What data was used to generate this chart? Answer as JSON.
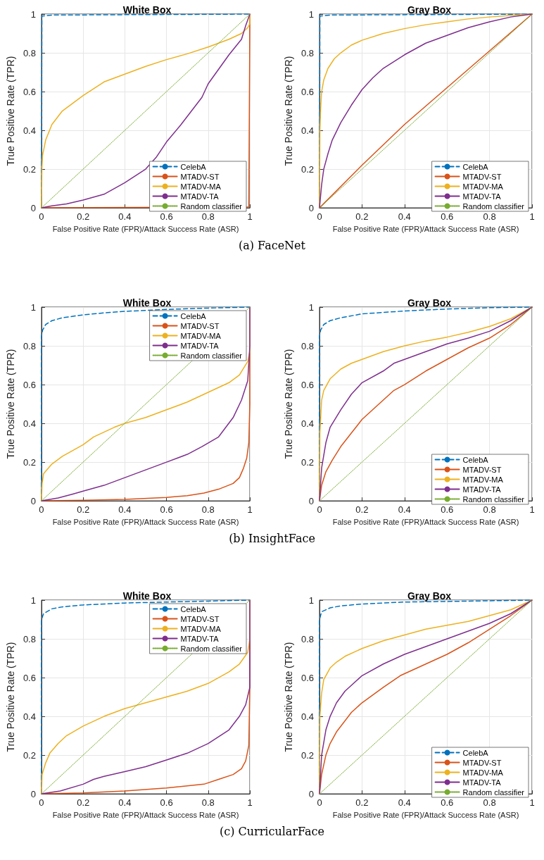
{
  "chart_data": [
    {
      "type": "line",
      "title": "White Box",
      "xlabel": "False Positive Rate (FPR)/Attack Success Rate (ASR)",
      "ylabel": "True Positive Rate (TPR)",
      "xlim": [
        0,
        1
      ],
      "ylim": [
        0,
        1
      ],
      "xticks": [
        0,
        0.2,
        0.4,
        0.6,
        0.8,
        1
      ],
      "yticks": [
        0,
        0.2,
        0.4,
        0.6,
        0.8,
        1
      ],
      "grid": true,
      "legend": "bottom right",
      "marker": "none",
      "series": [
        {
          "name": "CelebA",
          "color": "#0072bd",
          "line_style": "dashed",
          "x": [
            0,
            0.002,
            0.05,
            1
          ],
          "values": [
            0,
            0.99,
            0.995,
            1
          ]
        },
        {
          "name": "MTADV-ST",
          "color": "#d95319",
          "line_style": "solid",
          "x": [
            0,
            0.995,
            1,
            1
          ],
          "values": [
            0,
            0.005,
            0.94,
            1
          ]
        },
        {
          "name": "MTADV-MA",
          "color": "#edb120",
          "line_style": "solid",
          "x": [
            0,
            0.002,
            0.005,
            0.02,
            0.05,
            0.1,
            0.2,
            0.3,
            0.4,
            0.5,
            0.6,
            0.7,
            0.8,
            0.85,
            0.9,
            0.96,
            0.99,
            1,
            1
          ],
          "values": [
            0,
            0.2,
            0.27,
            0.35,
            0.43,
            0.5,
            0.58,
            0.65,
            0.69,
            0.73,
            0.765,
            0.795,
            0.83,
            0.85,
            0.87,
            0.9,
            0.93,
            0.95,
            1
          ]
        },
        {
          "name": "MTADV-TA",
          "color": "#7e2f8e",
          "line_style": "solid",
          "x": [
            0,
            0.05,
            0.12,
            0.2,
            0.3,
            0.4,
            0.5,
            0.55,
            0.6,
            0.67,
            0.72,
            0.77,
            0.8,
            0.9,
            0.96,
            0.98,
            1
          ],
          "values": [
            0,
            0.01,
            0.02,
            0.04,
            0.07,
            0.13,
            0.2,
            0.26,
            0.34,
            0.43,
            0.5,
            0.57,
            0.64,
            0.79,
            0.87,
            0.94,
            1
          ]
        },
        {
          "name": "Random classifier",
          "color": "#77ac30",
          "line_style": "dotted",
          "x": [
            0,
            1
          ],
          "values": [
            0,
            1
          ]
        }
      ]
    },
    {
      "type": "line",
      "title": "Gray Box",
      "xlabel": "False Positive Rate (FPR)/Attack Success Rate (ASR)",
      "ylabel": "True Positive Rate (TPR)",
      "xlim": [
        0,
        1
      ],
      "ylim": [
        0,
        1
      ],
      "xticks": [
        0,
        0.2,
        0.4,
        0.6,
        0.8,
        1
      ],
      "yticks": [
        0,
        0.2,
        0.4,
        0.6,
        0.8,
        1
      ],
      "grid": true,
      "legend": "bottom right",
      "marker": "none",
      "annotations": [
        "(a) FaceNet"
      ],
      "series": [
        {
          "name": "CelebA",
          "color": "#0072bd",
          "line_style": "dashed",
          "x": [
            0,
            0.002,
            0.05,
            1
          ],
          "values": [
            0,
            0.99,
            0.995,
            1
          ]
        },
        {
          "name": "MTADV-ST",
          "color": "#d95319",
          "line_style": "solid",
          "x": [
            0,
            0.2,
            0.4,
            0.6,
            0.8,
            1
          ],
          "values": [
            0,
            0.22,
            0.43,
            0.62,
            0.81,
            1
          ]
        },
        {
          "name": "MTADV-MA",
          "color": "#edb120",
          "line_style": "solid",
          "x": [
            0,
            0.002,
            0.005,
            0.01,
            0.02,
            0.04,
            0.07,
            0.1,
            0.15,
            0.2,
            0.3,
            0.4,
            0.5,
            0.6,
            0.7,
            0.8,
            0.9,
            1
          ],
          "values": [
            0,
            0.4,
            0.5,
            0.6,
            0.66,
            0.72,
            0.77,
            0.8,
            0.84,
            0.865,
            0.9,
            0.925,
            0.945,
            0.96,
            0.975,
            0.985,
            0.993,
            1
          ]
        },
        {
          "name": "MTADV-TA",
          "color": "#7e2f8e",
          "line_style": "solid",
          "x": [
            0,
            0.01,
            0.02,
            0.04,
            0.06,
            0.1,
            0.15,
            0.2,
            0.25,
            0.3,
            0.4,
            0.5,
            0.6,
            0.7,
            0.8,
            0.9,
            1
          ],
          "values": [
            0,
            0.12,
            0.2,
            0.28,
            0.35,
            0.44,
            0.53,
            0.61,
            0.67,
            0.72,
            0.79,
            0.85,
            0.89,
            0.93,
            0.96,
            0.985,
            1
          ]
        },
        {
          "name": "Random classifier",
          "color": "#77ac30",
          "line_style": "dotted",
          "x": [
            0,
            1
          ],
          "values": [
            0,
            1
          ]
        }
      ]
    },
    {
      "type": "line",
      "title": "White Box",
      "xlabel": "False Positive Rate (FPR)/Attack Success Rate (ASR)",
      "ylabel": "True Positive Rate (TPR)",
      "xlim": [
        0,
        1
      ],
      "ylim": [
        0,
        1
      ],
      "xticks": [
        0,
        0.2,
        0.4,
        0.6,
        0.8,
        1
      ],
      "yticks": [
        0,
        0.2,
        0.4,
        0.6,
        0.8,
        1
      ],
      "grid": true,
      "legend": "top right",
      "marker": "none",
      "series": [
        {
          "name": "CelebA",
          "color": "#0072bd",
          "line_style": "dashed",
          "x": [
            0,
            0,
            0.005,
            0.02,
            0.05,
            0.1,
            0.2,
            0.3,
            0.4,
            0.6,
            0.8,
            1
          ],
          "values": [
            0,
            0.85,
            0.88,
            0.91,
            0.93,
            0.945,
            0.96,
            0.97,
            0.978,
            0.988,
            0.995,
            1
          ]
        },
        {
          "name": "MTADV-ST",
          "color": "#d95319",
          "line_style": "solid",
          "x": [
            0,
            0.2,
            0.4,
            0.6,
            0.7,
            0.78,
            0.85,
            0.92,
            0.95,
            0.97,
            0.985,
            0.995,
            1,
            1
          ],
          "values": [
            0,
            0.003,
            0.008,
            0.018,
            0.027,
            0.04,
            0.06,
            0.09,
            0.12,
            0.17,
            0.22,
            0.3,
            0.5,
            1
          ]
        },
        {
          "name": "MTADV-MA",
          "color": "#edb120",
          "line_style": "solid",
          "x": [
            0,
            0.003,
            0.01,
            0.05,
            0.1,
            0.2,
            0.25,
            0.35,
            0.4,
            0.5,
            0.6,
            0.7,
            0.8,
            0.9,
            0.95,
            0.99,
            1,
            1
          ],
          "values": [
            0,
            0.09,
            0.14,
            0.19,
            0.23,
            0.29,
            0.33,
            0.38,
            0.4,
            0.43,
            0.47,
            0.51,
            0.56,
            0.61,
            0.65,
            0.72,
            0.77,
            1
          ]
        },
        {
          "name": "MTADV-TA",
          "color": "#7e2f8e",
          "line_style": "solid",
          "x": [
            0,
            0.08,
            0.15,
            0.2,
            0.3,
            0.4,
            0.5,
            0.6,
            0.7,
            0.77,
            0.85,
            0.92,
            0.96,
            0.99,
            1,
            1
          ],
          "values": [
            0,
            0.015,
            0.035,
            0.05,
            0.08,
            0.12,
            0.16,
            0.2,
            0.24,
            0.28,
            0.33,
            0.43,
            0.52,
            0.62,
            0.8,
            1
          ]
        },
        {
          "name": "Random classifier",
          "color": "#77ac30",
          "line_style": "dotted",
          "x": [
            0,
            1
          ],
          "values": [
            0,
            1
          ]
        }
      ]
    },
    {
      "type": "line",
      "title": "Gray Box",
      "xlabel": "False Positive Rate (FPR)/Attack Success Rate (ASR)",
      "ylabel": "True Positive Rate (TPR)",
      "xlim": [
        0,
        1
      ],
      "ylim": [
        0,
        1
      ],
      "xticks": [
        0,
        0.2,
        0.4,
        0.6,
        0.8,
        1
      ],
      "yticks": [
        0,
        0.2,
        0.4,
        0.6,
        0.8,
        1
      ],
      "grid": true,
      "legend": "bottom right",
      "marker": "none",
      "annotations": [
        "(b) InsightFace"
      ],
      "series": [
        {
          "name": "CelebA",
          "color": "#0072bd",
          "line_style": "dashed",
          "x": [
            0,
            0,
            0.005,
            0.02,
            0.05,
            0.1,
            0.2,
            0.4,
            0.6,
            0.8,
            1
          ],
          "values": [
            0,
            0.85,
            0.88,
            0.91,
            0.93,
            0.945,
            0.965,
            0.98,
            0.99,
            0.997,
            1
          ]
        },
        {
          "name": "MTADV-ST",
          "color": "#d95319",
          "line_style": "solid",
          "x": [
            0,
            0.01,
            0.03,
            0.06,
            0.1,
            0.15,
            0.2,
            0.3,
            0.35,
            0.4,
            0.5,
            0.6,
            0.7,
            0.8,
            0.9,
            1
          ],
          "values": [
            0,
            0.08,
            0.15,
            0.21,
            0.28,
            0.35,
            0.42,
            0.52,
            0.57,
            0.6,
            0.67,
            0.73,
            0.79,
            0.84,
            0.91,
            1
          ]
        },
        {
          "name": "MTADV-MA",
          "color": "#edb120",
          "line_style": "solid",
          "x": [
            0,
            0.002,
            0.01,
            0.02,
            0.05,
            0.1,
            0.15,
            0.2,
            0.3,
            0.4,
            0.5,
            0.6,
            0.7,
            0.8,
            0.9,
            1
          ],
          "values": [
            0,
            0.35,
            0.52,
            0.57,
            0.63,
            0.68,
            0.71,
            0.73,
            0.77,
            0.8,
            0.825,
            0.845,
            0.87,
            0.9,
            0.94,
            1
          ]
        },
        {
          "name": "MTADV-TA",
          "color": "#7e2f8e",
          "line_style": "solid",
          "x": [
            0,
            0.01,
            0.03,
            0.05,
            0.1,
            0.15,
            0.2,
            0.3,
            0.35,
            0.4,
            0.5,
            0.6,
            0.7,
            0.8,
            0.9,
            1
          ],
          "values": [
            0,
            0.17,
            0.3,
            0.38,
            0.47,
            0.55,
            0.61,
            0.67,
            0.71,
            0.73,
            0.77,
            0.81,
            0.84,
            0.875,
            0.93,
            1
          ]
        },
        {
          "name": "Random classifier",
          "color": "#77ac30",
          "line_style": "dotted",
          "x": [
            0,
            1
          ],
          "values": [
            0,
            1
          ]
        }
      ]
    },
    {
      "type": "line",
      "title": "White Box",
      "xlabel": "False Positive Rate (FPR)/Attack Success Rate (ASR)",
      "ylabel": "True Positive Rate (TPR)",
      "xlim": [
        0,
        1
      ],
      "ylim": [
        0,
        1
      ],
      "xticks": [
        0,
        0.2,
        0.4,
        0.6,
        0.8,
        1
      ],
      "yticks": [
        0,
        0.2,
        0.4,
        0.6,
        0.8,
        1
      ],
      "grid": true,
      "legend": "top right",
      "marker": "none",
      "series": [
        {
          "name": "CelebA",
          "color": "#0072bd",
          "line_style": "dashed",
          "x": [
            0,
            0,
            0.01,
            0.05,
            0.1,
            0.2,
            0.4,
            0.6,
            0.8,
            1
          ],
          "values": [
            0,
            0.9,
            0.93,
            0.955,
            0.965,
            0.975,
            0.985,
            0.99,
            0.995,
            1
          ]
        },
        {
          "name": "MTADV-ST",
          "color": "#d95319",
          "line_style": "solid",
          "x": [
            0,
            0.2,
            0.4,
            0.6,
            0.78,
            0.85,
            0.92,
            0.96,
            0.98,
            0.995,
            1,
            1
          ],
          "values": [
            0,
            0.005,
            0.015,
            0.03,
            0.05,
            0.075,
            0.1,
            0.13,
            0.17,
            0.25,
            0.55,
            1
          ]
        },
        {
          "name": "MTADV-MA",
          "color": "#edb120",
          "line_style": "solid",
          "x": [
            0,
            0.003,
            0.02,
            0.04,
            0.08,
            0.12,
            0.2,
            0.3,
            0.4,
            0.5,
            0.6,
            0.7,
            0.8,
            0.9,
            0.95,
            0.99,
            1,
            1
          ],
          "values": [
            0,
            0.1,
            0.16,
            0.21,
            0.26,
            0.3,
            0.35,
            0.4,
            0.44,
            0.47,
            0.5,
            0.53,
            0.57,
            0.63,
            0.67,
            0.73,
            0.8,
            1
          ]
        },
        {
          "name": "MTADV-TA",
          "color": "#7e2f8e",
          "line_style": "solid",
          "x": [
            0,
            0.09,
            0.2,
            0.25,
            0.3,
            0.4,
            0.5,
            0.6,
            0.7,
            0.8,
            0.9,
            0.95,
            0.98,
            1,
            1
          ],
          "values": [
            0,
            0.015,
            0.05,
            0.075,
            0.09,
            0.115,
            0.14,
            0.175,
            0.21,
            0.26,
            0.33,
            0.4,
            0.46,
            0.55,
            1
          ]
        },
        {
          "name": "Random classifier",
          "color": "#77ac30",
          "line_style": "dotted",
          "x": [
            0,
            1
          ],
          "values": [
            0,
            1
          ]
        }
      ]
    },
    {
      "type": "line",
      "title": "Gray Box",
      "xlabel": "False Positive Rate (FPR)/Attack Success Rate (ASR)",
      "ylabel": "True Positive Rate (TPR)",
      "xlim": [
        0,
        1
      ],
      "ylim": [
        0,
        1
      ],
      "xticks": [
        0,
        0.2,
        0.4,
        0.6,
        0.8,
        1
      ],
      "yticks": [
        0,
        0.2,
        0.4,
        0.6,
        0.8,
        1
      ],
      "grid": true,
      "legend": "bottom right",
      "marker": "none",
      "annotations": [
        "(c) CurricularFace"
      ],
      "series": [
        {
          "name": "CelebA",
          "color": "#0072bd",
          "line_style": "dashed",
          "x": [
            0,
            0,
            0.01,
            0.05,
            0.1,
            0.2,
            0.4,
            0.6,
            1
          ],
          "values": [
            0,
            0.9,
            0.94,
            0.96,
            0.97,
            0.98,
            0.99,
            0.993,
            1
          ]
        },
        {
          "name": "MTADV-ST",
          "color": "#d95319",
          "line_style": "solid",
          "x": [
            0,
            0.01,
            0.03,
            0.05,
            0.08,
            0.15,
            0.2,
            0.3,
            0.38,
            0.5,
            0.6,
            0.7,
            0.8,
            0.9,
            1
          ],
          "values": [
            0,
            0.1,
            0.2,
            0.26,
            0.32,
            0.42,
            0.47,
            0.55,
            0.61,
            0.67,
            0.72,
            0.78,
            0.85,
            0.92,
            1
          ]
        },
        {
          "name": "MTADV-MA",
          "color": "#edb120",
          "line_style": "solid",
          "x": [
            0,
            0.002,
            0.01,
            0.02,
            0.05,
            0.08,
            0.12,
            0.2,
            0.3,
            0.4,
            0.5,
            0.6,
            0.7,
            0.8,
            0.9,
            1
          ],
          "values": [
            0,
            0.4,
            0.52,
            0.59,
            0.65,
            0.68,
            0.71,
            0.75,
            0.79,
            0.82,
            0.85,
            0.87,
            0.89,
            0.92,
            0.95,
            1
          ]
        },
        {
          "name": "MTADV-TA",
          "color": "#7e2f8e",
          "line_style": "solid",
          "x": [
            0,
            0.01,
            0.03,
            0.05,
            0.08,
            0.12,
            0.2,
            0.3,
            0.4,
            0.5,
            0.6,
            0.7,
            0.8,
            0.9,
            1
          ],
          "values": [
            0,
            0.2,
            0.33,
            0.4,
            0.47,
            0.53,
            0.61,
            0.67,
            0.72,
            0.76,
            0.8,
            0.84,
            0.88,
            0.93,
            1
          ]
        },
        {
          "name": "Random classifier",
          "color": "#77ac30",
          "line_style": "dotted",
          "x": [
            0,
            1
          ],
          "values": [
            0,
            1
          ]
        }
      ]
    }
  ]
}
